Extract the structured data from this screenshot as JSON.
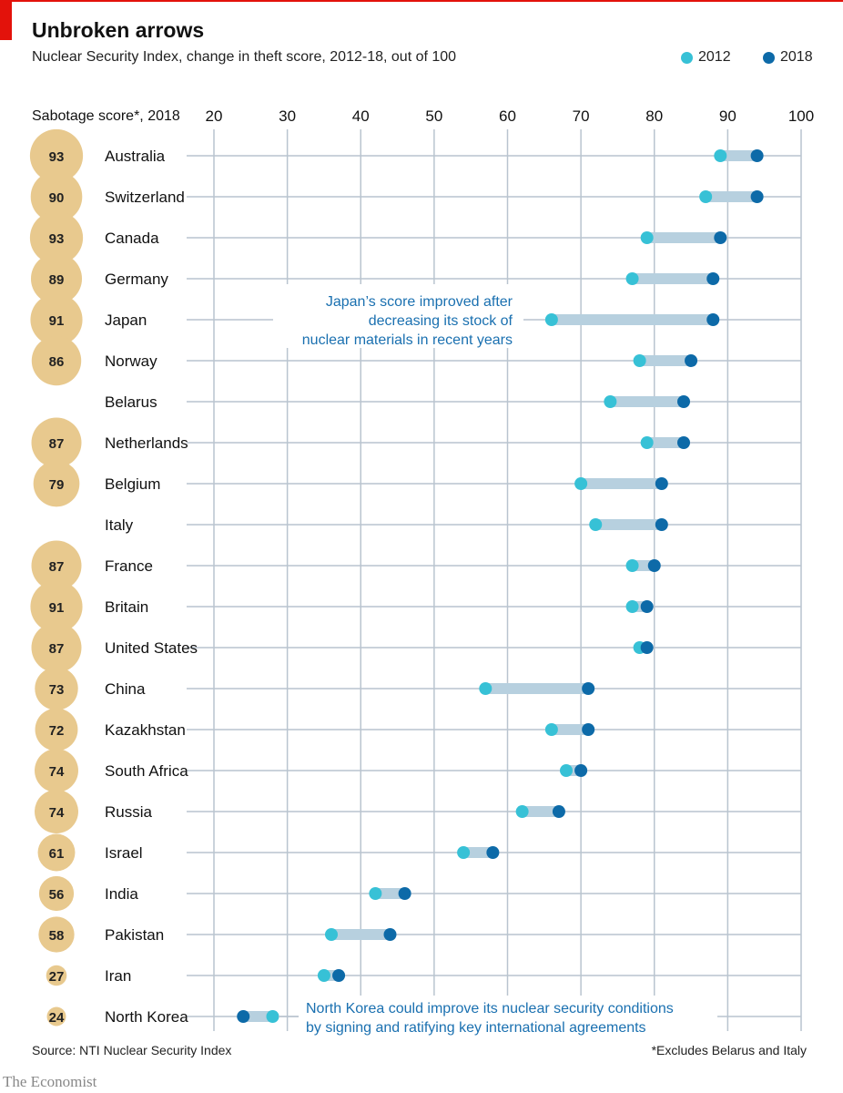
{
  "title": "Unbroken arrows",
  "subtitle": "Nuclear Security Index, change in theft score, 2012-18, out of 100",
  "source": "Source: NTI Nuclear Security Index",
  "footnote": "*Excludes Belarus and Italy",
  "brand": "The Economist",
  "colors": {
    "y2012": "#37c1d6",
    "y2018": "#0d6aa8",
    "connector": "#b7d0df",
    "bubble": "#e8c98e",
    "grid": "#b9c4cf",
    "annotation": "#1a70b0"
  },
  "chart_data": {
    "type": "dot-range",
    "sabotage_header": "Sabotage score*, 2018",
    "xlim": [
      20,
      100
    ],
    "ticks": [
      20,
      30,
      40,
      50,
      60,
      70,
      80,
      90,
      100
    ],
    "legend": [
      "2012",
      "2018"
    ],
    "rows": [
      {
        "country": "Australia",
        "sabotage": 93,
        "v2012": 89,
        "v2018": 94
      },
      {
        "country": "Switzerland",
        "sabotage": 90,
        "v2012": 87,
        "v2018": 94
      },
      {
        "country": "Canada",
        "sabotage": 93,
        "v2012": 79,
        "v2018": 89
      },
      {
        "country": "Germany",
        "sabotage": 89,
        "v2012": 77,
        "v2018": 88
      },
      {
        "country": "Japan",
        "sabotage": 91,
        "v2012": 66,
        "v2018": 88
      },
      {
        "country": "Norway",
        "sabotage": 86,
        "v2012": 78,
        "v2018": 85
      },
      {
        "country": "Belarus",
        "sabotage": null,
        "v2012": 74,
        "v2018": 84
      },
      {
        "country": "Netherlands",
        "sabotage": 87,
        "v2012": 79,
        "v2018": 84
      },
      {
        "country": "Belgium",
        "sabotage": 79,
        "v2012": 70,
        "v2018": 81
      },
      {
        "country": "Italy",
        "sabotage": null,
        "v2012": 72,
        "v2018": 81
      },
      {
        "country": "France",
        "sabotage": 87,
        "v2012": 77,
        "v2018": 80
      },
      {
        "country": "Britain",
        "sabotage": 91,
        "v2012": 77,
        "v2018": 79
      },
      {
        "country": "United States",
        "sabotage": 87,
        "v2012": 78,
        "v2018": 79
      },
      {
        "country": "China",
        "sabotage": 73,
        "v2012": 57,
        "v2018": 71
      },
      {
        "country": "Kazakhstan",
        "sabotage": 72,
        "v2012": 66,
        "v2018": 71
      },
      {
        "country": "South Africa",
        "sabotage": 74,
        "v2012": 68,
        "v2018": 70
      },
      {
        "country": "Russia",
        "sabotage": 74,
        "v2012": 62,
        "v2018": 67
      },
      {
        "country": "Israel",
        "sabotage": 61,
        "v2012": 54,
        "v2018": 58
      },
      {
        "country": "India",
        "sabotage": 56,
        "v2012": 42,
        "v2018": 46
      },
      {
        "country": "Pakistan",
        "sabotage": 58,
        "v2012": 36,
        "v2018": 44
      },
      {
        "country": "Iran",
        "sabotage": 27,
        "v2012": 35,
        "v2018": 37
      },
      {
        "country": "North Korea",
        "sabotage": 24,
        "v2012": 28,
        "v2018": 24
      }
    ],
    "annotations": [
      {
        "row": 4,
        "lines": [
          "Japan’s score improved after",
          "decreasing its stock of",
          "nuclear materials in recent years"
        ]
      },
      {
        "row": 21,
        "lines": [
          "North Korea could improve its nuclear security conditions",
          "by signing and ratifying key international agreements"
        ]
      }
    ]
  }
}
